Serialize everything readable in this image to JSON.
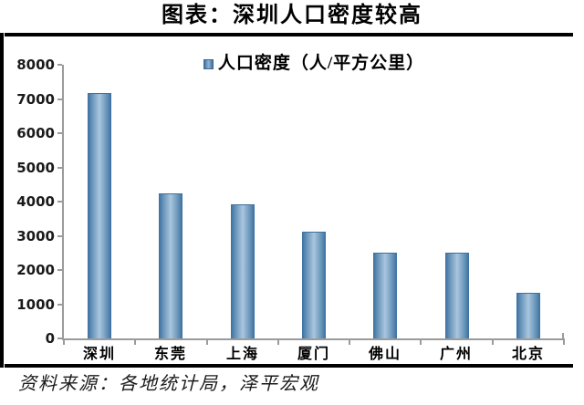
{
  "chart_data": {
    "type": "bar",
    "title": "图表：深圳人口密度较高",
    "legend": "人口密度（人/平方公里）",
    "categories": [
      "深圳",
      "东莞",
      "上海",
      "厦门",
      "佛山",
      "广州",
      "北京"
    ],
    "values": [
      7170,
      4230,
      3920,
      3110,
      2500,
      2500,
      1340
    ],
    "xlabel": "",
    "ylabel": "",
    "ylim": [
      0,
      8000
    ],
    "ytick_step": 1000,
    "grid": false,
    "legend_position": "top-center",
    "colors": {
      "bar_edge": "#41719c",
      "bar_mid": "#a9c6de",
      "axis": "#9b9b9b",
      "text": "#000000",
      "frame": "#000000"
    },
    "source": "资料来源：各地统计局，泽平宏观"
  }
}
